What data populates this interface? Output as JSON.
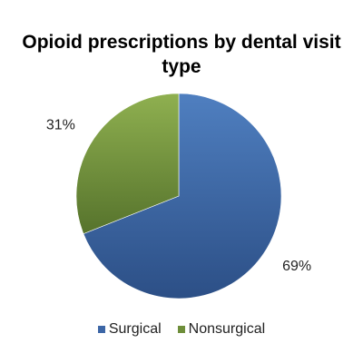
{
  "chart_data": {
    "type": "pie",
    "title": "Opioid prescriptions by dental visit type",
    "categories": [
      "Surgical",
      "Nonsurgical"
    ],
    "values": [
      69,
      31
    ],
    "data_labels": [
      "69%",
      "31%"
    ],
    "colors": [
      "#3c66a6",
      "#6e8e3a"
    ],
    "legend_position": "bottom",
    "start_angle_deg": 0,
    "direction": "clockwise"
  }
}
